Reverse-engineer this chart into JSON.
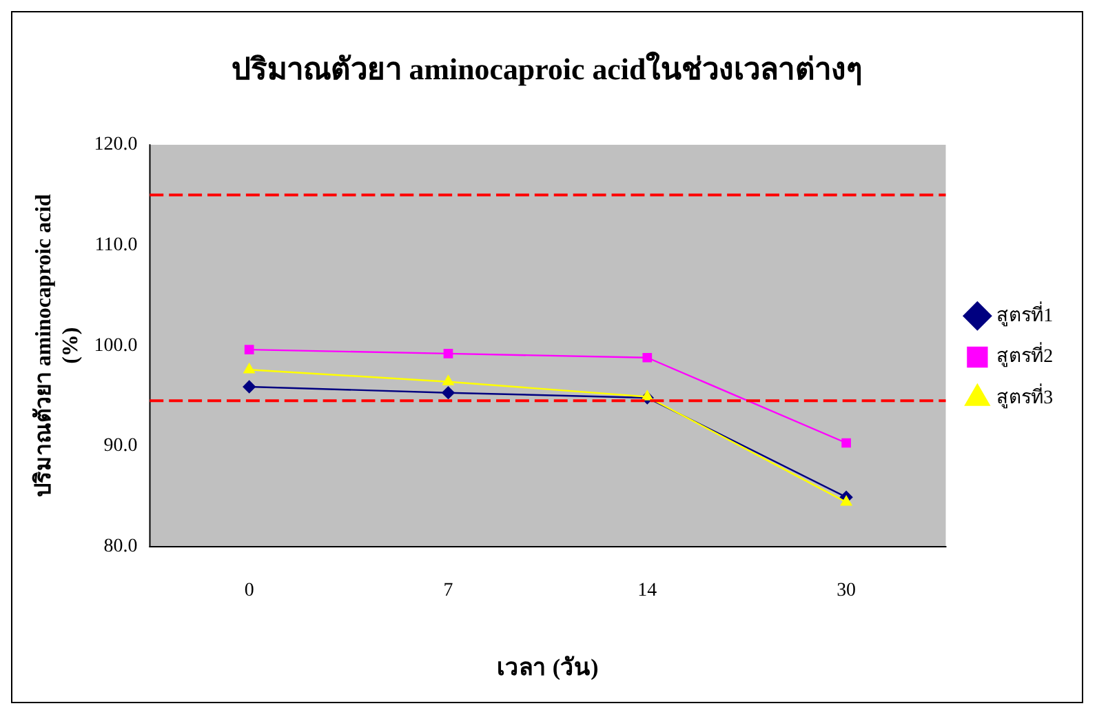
{
  "chart_data": {
    "type": "line",
    "title": "ปริมาณตัวยา aminocaproic acidในช่วงเวลาต่างๆ",
    "xlabel": "เวลา (วัน)",
    "ylabel": "ปริมาณตัวยา aminocaproic acid\n(%)",
    "categories": [
      "0",
      "7",
      "14",
      "30"
    ],
    "series": [
      {
        "name": "สูตรที่1",
        "color": "#000080",
        "marker": "diamond",
        "values": [
          95.9,
          95.3,
          94.8,
          84.9
        ]
      },
      {
        "name": "สูตรที่2",
        "color": "#ff00ff",
        "marker": "square",
        "values": [
          99.6,
          99.2,
          98.8,
          90.3
        ]
      },
      {
        "name": "สูตรที่3",
        "color": "#ffff00",
        "marker": "triangle",
        "values": [
          97.6,
          96.4,
          94.9,
          84.4
        ]
      }
    ],
    "ylim": [
      80,
      120
    ],
    "yticks": [
      {
        "value": 80,
        "label": "80.0"
      },
      {
        "value": 90,
        "label": "90.0"
      },
      {
        "value": 100,
        "label": "100.0"
      },
      {
        "value": 110,
        "label": "110.0"
      },
      {
        "value": 120,
        "label": "120.0"
      }
    ],
    "ref_lines": [
      {
        "axis": "y",
        "value": 115,
        "color": "#ff0000",
        "line_style": "dashed"
      },
      {
        "axis": "y",
        "value": 94.5,
        "color": "#ff0000",
        "line_style": "dashed"
      }
    ],
    "grid": false,
    "legend": "right",
    "line_style": "solid"
  }
}
